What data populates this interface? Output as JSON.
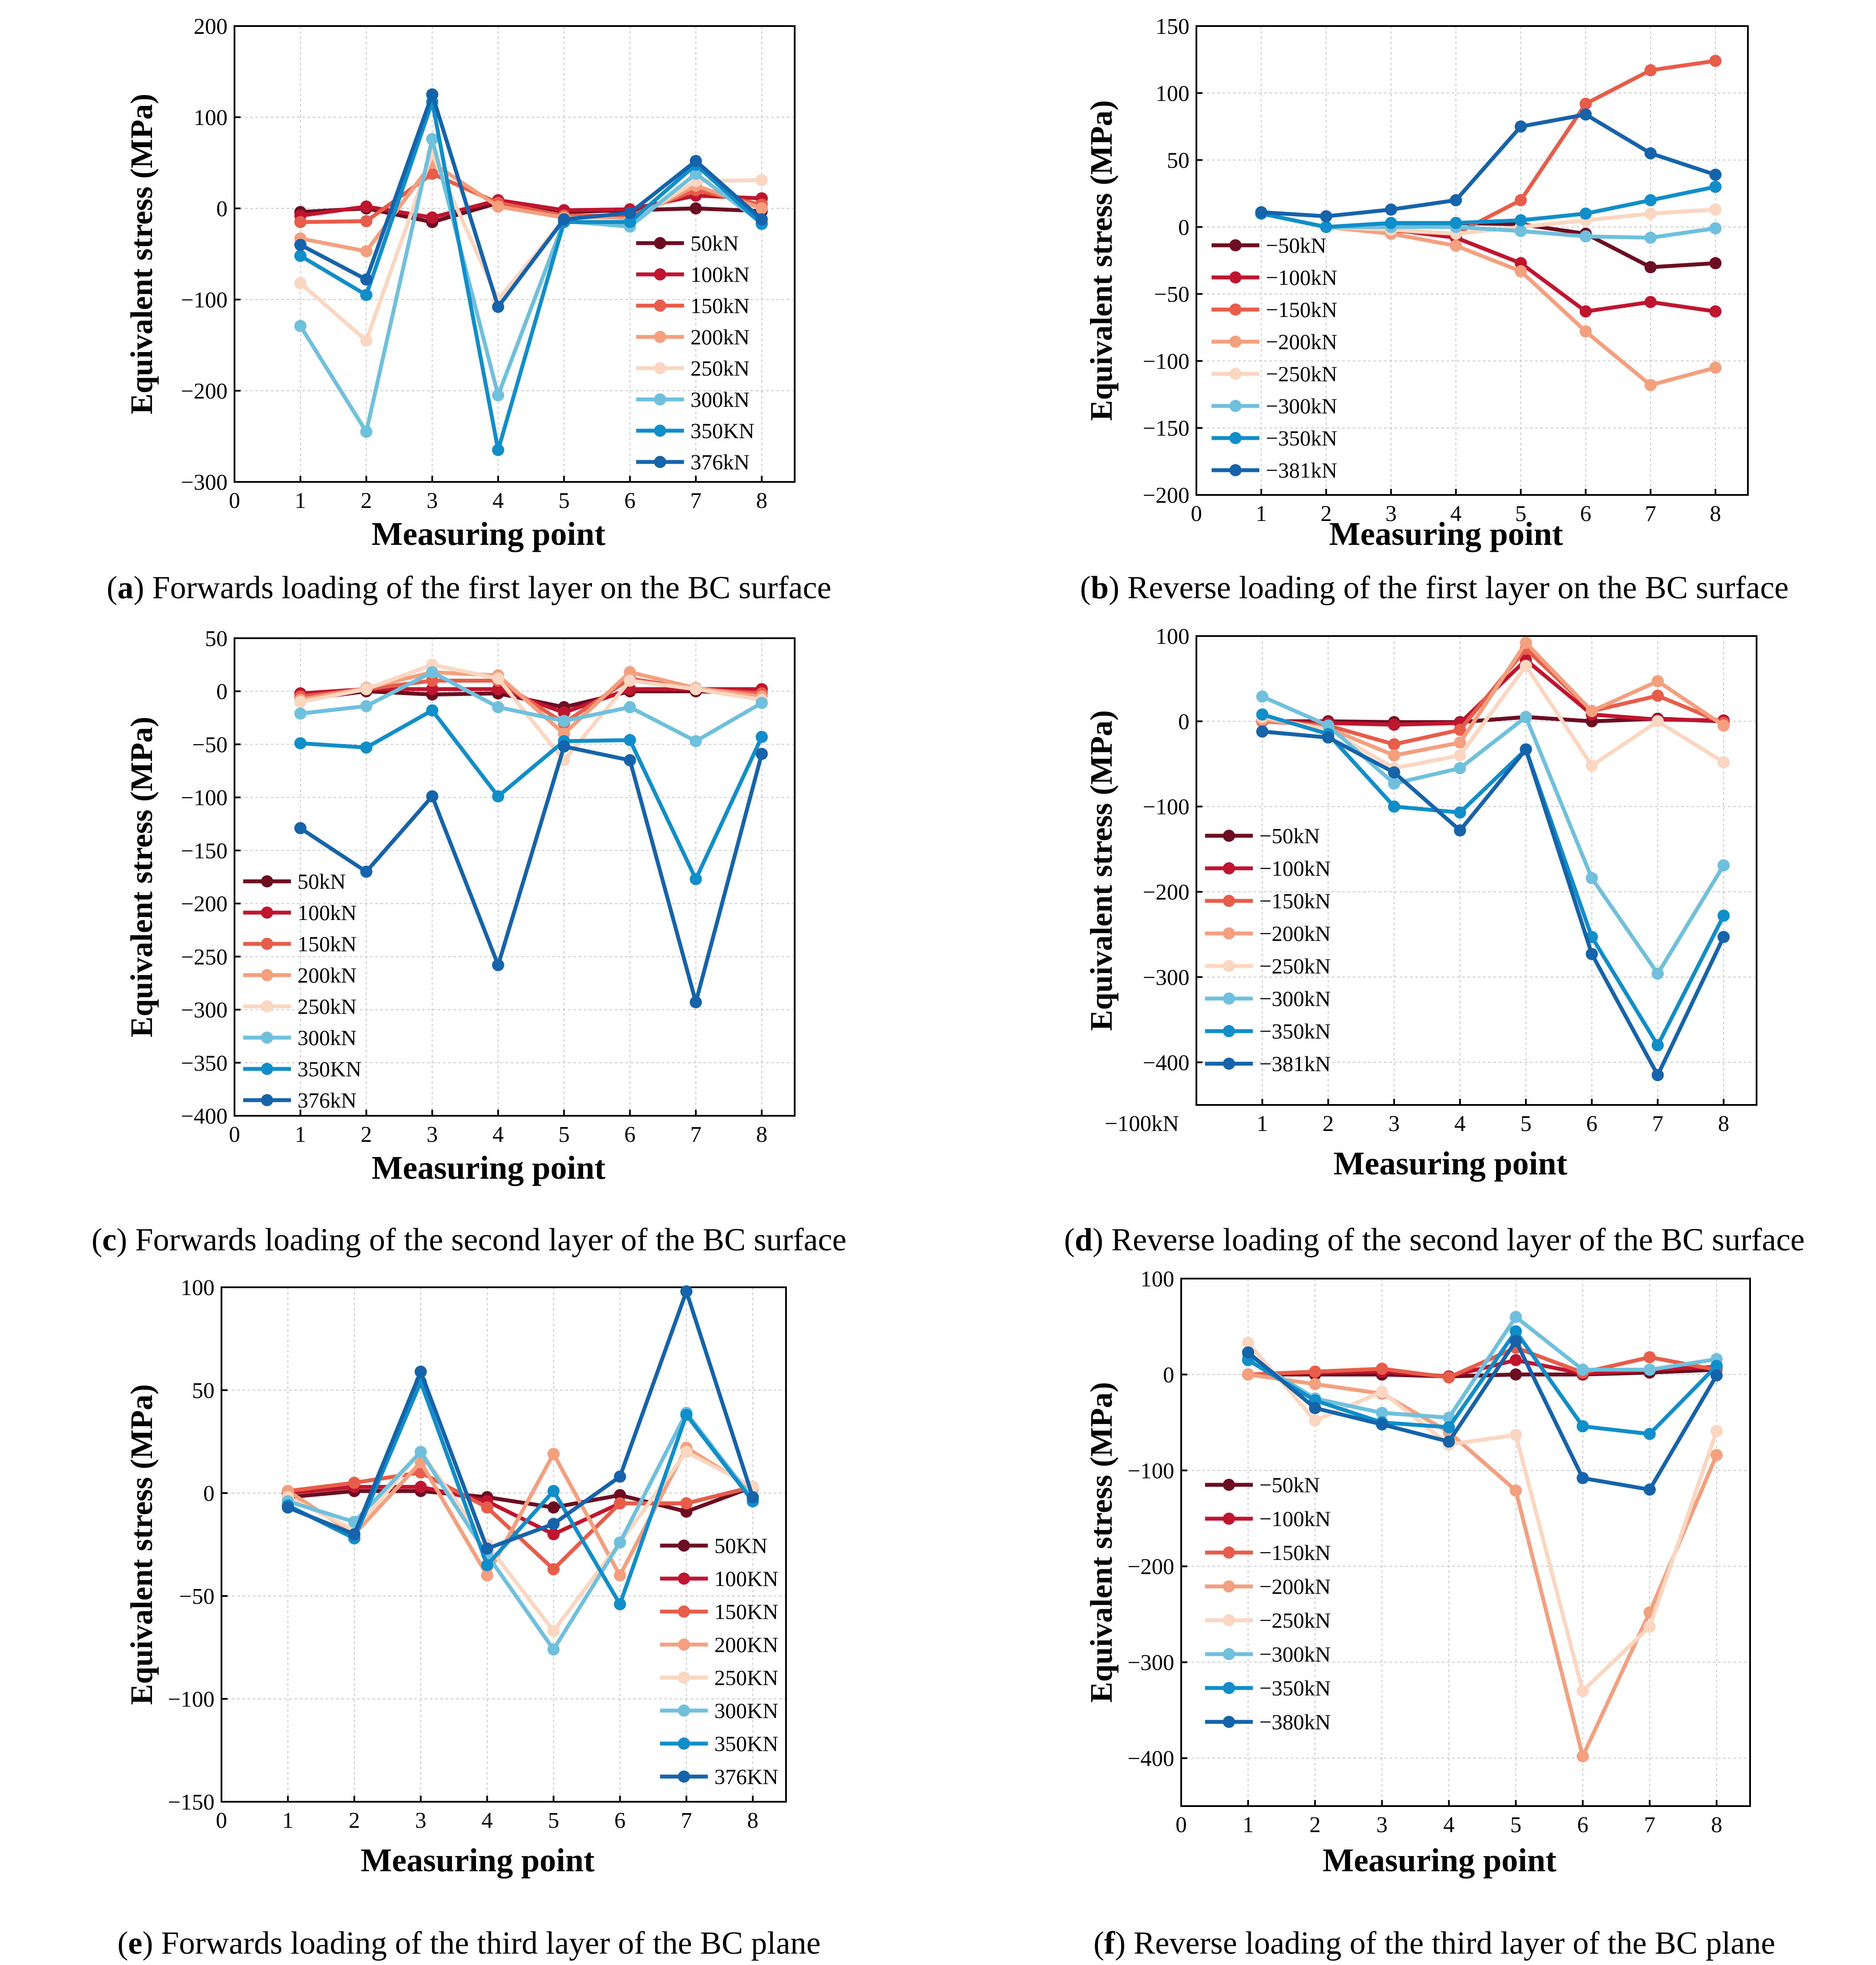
{
  "chart_data": [
    {
      "panel_letter": "a",
      "caption": "Forwards loading of the first layer on the BC surface",
      "type": "line",
      "xlabel": "Measuring point",
      "ylabel": "Equivalent stress (MPa)",
      "xlim": [
        0,
        8.5
      ],
      "ylim": [
        -300,
        200
      ],
      "x_ticks": [
        "0",
        "1",
        "2",
        "3",
        "4",
        "5",
        "6",
        "7",
        "8"
      ],
      "y_ticks": [
        "200",
        "100",
        "0",
        "−100",
        "−200",
        "−300"
      ],
      "y_tick_values": [
        200,
        100,
        0,
        -100,
        -200,
        -300
      ],
      "legend_position": "bottom-right",
      "x": [
        1,
        2,
        3,
        4,
        5,
        6,
        7,
        8
      ],
      "series": [
        {
          "name": "50kN",
          "color": "#6d0d22",
          "values": [
            -4,
            0,
            -15,
            6,
            -4,
            -2,
            0,
            -3
          ]
        },
        {
          "name": "100kN",
          "color": "#c0152e",
          "values": [
            -8,
            2,
            -10,
            9,
            -2,
            -1,
            14,
            11
          ]
        },
        {
          "name": "150kN",
          "color": "#e85c4a",
          "values": [
            -15,
            -14,
            38,
            6,
            -8,
            -8,
            20,
            4
          ]
        },
        {
          "name": "200kN",
          "color": "#f4a07e",
          "values": [
            -33,
            -47,
            50,
            2,
            -10,
            -12,
            25,
            0
          ]
        },
        {
          "name": "250kN",
          "color": "#fbd6c0",
          "values": [
            -82,
            -145,
            60,
            -100,
            -12,
            -15,
            30,
            31
          ]
        },
        {
          "name": "300kN",
          "color": "#6fc0dd",
          "values": [
            -129,
            -245,
            76,
            -205,
            -14,
            -20,
            38,
            -16
          ]
        },
        {
          "name": "350KN",
          "color": "#0f8ec9",
          "values": [
            -52,
            -95,
            117,
            -265,
            -15,
            -15,
            48,
            -17
          ]
        },
        {
          "name": "376kN",
          "color": "#1463ab",
          "values": [
            -40,
            -78,
            125,
            -108,
            -12,
            -5,
            52,
            -12
          ]
        }
      ]
    },
    {
      "panel_letter": "b",
      "caption": "Reverse loading of the first layer on the BC surface",
      "type": "line",
      "xlabel": "Measuring point",
      "ylabel": "Equivalent stress (MPa)",
      "xlim": [
        0,
        8.5
      ],
      "ylim": [
        -200,
        150
      ],
      "x_ticks": [
        "0",
        "1",
        "2",
        "3",
        "4",
        "5",
        "6",
        "7",
        "8"
      ],
      "y_ticks": [
        "150",
        "100",
        "50",
        "0",
        "−50",
        "−100",
        "−150",
        "−200"
      ],
      "y_tick_values": [
        150,
        100,
        50,
        0,
        -50,
        -100,
        -150,
        -200
      ],
      "legend_position": "bottom-left",
      "x": [
        1,
        2,
        3,
        4,
        5,
        6,
        7,
        8
      ],
      "series": [
        {
          "name": "−50kN",
          "color": "#6d0d22",
          "values": [
            10,
            0,
            2,
            3,
            2,
            -5,
            -30,
            -27
          ]
        },
        {
          "name": "−100kN",
          "color": "#c0152e",
          "values": [
            10,
            0,
            -2,
            -8,
            -27,
            -63,
            -56,
            -63
          ]
        },
        {
          "name": "−150kN",
          "color": "#e85c4a",
          "values": [
            10,
            0,
            -3,
            -5,
            20,
            92,
            117,
            124
          ]
        },
        {
          "name": "−200kN",
          "color": "#f4a07e",
          "values": [
            10,
            0,
            -5,
            -14,
            -33,
            -78,
            -118,
            -105
          ]
        },
        {
          "name": "−250kN",
          "color": "#fbd6c0",
          "values": [
            10,
            0,
            -2,
            -5,
            0,
            5,
            10,
            13
          ]
        },
        {
          "name": "−300kN",
          "color": "#6fc0dd",
          "values": [
            10,
            0,
            0,
            0,
            -3,
            -7,
            -8,
            -1
          ]
        },
        {
          "name": "−350kN",
          "color": "#0f8ec9",
          "values": [
            10,
            0,
            3,
            3,
            5,
            10,
            20,
            30
          ]
        },
        {
          "name": "−381kN",
          "color": "#1463ab",
          "values": [
            11,
            8,
            13,
            20,
            75,
            84,
            55,
            39
          ]
        }
      ]
    },
    {
      "panel_letter": "c",
      "caption": "Forwards loading of the second layer of the BC surface",
      "type": "line",
      "xlabel": "Measuring point",
      "ylabel": "Equivalent stress (MPa)",
      "xlim": [
        0,
        8.5
      ],
      "ylim": [
        -400,
        50
      ],
      "x_ticks": [
        "0",
        "1",
        "2",
        "3",
        "4",
        "5",
        "6",
        "7",
        "8"
      ],
      "y_ticks": [
        "50",
        "0",
        "−50",
        "−100",
        "−150",
        "−200",
        "−250",
        "−300",
        "−350",
        "−400"
      ],
      "y_tick_values": [
        50,
        0,
        -50,
        -100,
        -150,
        -200,
        -250,
        -300,
        -350,
        -400
      ],
      "legend_position": "bottom-left",
      "x": [
        1,
        2,
        3,
        4,
        5,
        6,
        7,
        8
      ],
      "series": [
        {
          "name": "50kN",
          "color": "#6d0d22",
          "values": [
            -8,
            0,
            -3,
            -2,
            -15,
            0,
            0,
            -2
          ]
        },
        {
          "name": "100kN",
          "color": "#c0152e",
          "values": [
            -2,
            2,
            2,
            2,
            -20,
            2,
            2,
            2
          ]
        },
        {
          "name": "150kN",
          "color": "#e85c4a",
          "values": [
            -5,
            2,
            10,
            10,
            -30,
            12,
            2,
            -2
          ]
        },
        {
          "name": "200kN",
          "color": "#f4a07e",
          "values": [
            -8,
            3,
            18,
            15,
            -40,
            18,
            3,
            -5
          ]
        },
        {
          "name": "250kN",
          "color": "#fbd6c0",
          "values": [
            -10,
            2,
            25,
            12,
            -65,
            10,
            2,
            -8
          ]
        },
        {
          "name": "300kN",
          "color": "#6fc0dd",
          "values": [
            -21,
            -14,
            18,
            -15,
            -28,
            -15,
            -47,
            -11
          ]
        },
        {
          "name": "350KN",
          "color": "#0f8ec9",
          "values": [
            -49,
            -53,
            -18,
            -99,
            -47,
            -46,
            -177,
            -43
          ]
        },
        {
          "name": "376kN",
          "color": "#1463ab",
          "values": [
            -129,
            -170,
            -99,
            -258,
            -52,
            -65,
            -293,
            -59
          ]
        }
      ]
    },
    {
      "panel_letter": "d",
      "caption": "Reverse loading of the second layer of the BC surface",
      "type": "line",
      "xlabel": "Measuring point",
      "ylabel": "Equivalent stress (MPa)",
      "xlim": [
        0,
        8.5
      ],
      "ylim": [
        -450,
        100
      ],
      "x_ticks": [
        "−100kN",
        "1",
        "2",
        "3",
        "4",
        "5",
        "6",
        "7",
        "8"
      ],
      "y_ticks": [
        "100",
        "0",
        "−100",
        "−200",
        "−300",
        "−400"
      ],
      "y_tick_values": [
        100,
        0,
        -100,
        -200,
        -300,
        -400
      ],
      "legend_position": "bottom-left",
      "x": [
        1,
        2,
        3,
        4,
        5,
        6,
        7,
        8
      ],
      "series": [
        {
          "name": "−50kN",
          "color": "#6d0d22",
          "values": [
            0,
            0,
            -1,
            -1,
            5,
            0,
            3,
            0
          ]
        },
        {
          "name": "−100kN",
          "color": "#c0152e",
          "values": [
            0,
            -2,
            -4,
            -2,
            72,
            8,
            2,
            1
          ]
        },
        {
          "name": "−150kN",
          "color": "#e85c4a",
          "values": [
            0,
            -5,
            -27,
            -10,
            85,
            12,
            30,
            -2
          ]
        },
        {
          "name": "−200kN",
          "color": "#f4a07e",
          "values": [
            2,
            -8,
            -40,
            -25,
            92,
            12,
            47,
            -5
          ]
        },
        {
          "name": "−250kN",
          "color": "#fbd6c0",
          "values": [
            5,
            -10,
            -55,
            -40,
            65,
            -52,
            0,
            -48
          ]
        },
        {
          "name": "−300kN",
          "color": "#6fc0dd",
          "values": [
            29,
            -5,
            -73,
            -55,
            5,
            -184,
            -296,
            -169
          ]
        },
        {
          "name": "−350kN",
          "color": "#0f8ec9",
          "values": [
            8,
            -15,
            -100,
            -107,
            -33,
            -253,
            -380,
            -228
          ]
        },
        {
          "name": "−381kN",
          "color": "#1463ab",
          "values": [
            -12,
            -19,
            -60,
            -128,
            -33,
            -273,
            -415,
            -253
          ]
        }
      ]
    },
    {
      "panel_letter": "e",
      "caption": "Forwards loading of the third layer of the BC plane",
      "type": "line",
      "xlabel": "Measuring point",
      "ylabel": "Equivalent stress (MPa)",
      "xlim": [
        0,
        8.5
      ],
      "ylim": [
        -150,
        100
      ],
      "x_ticks": [
        "0",
        "1",
        "2",
        "3",
        "4",
        "5",
        "6",
        "7",
        "8"
      ],
      "y_ticks": [
        "100",
        "50",
        "0",
        "−50",
        "−100",
        "−150"
      ],
      "y_tick_values": [
        100,
        50,
        0,
        -50,
        -100,
        -150
      ],
      "legend_position": "bottom-right",
      "x": [
        1,
        2,
        3,
        4,
        5,
        6,
        7,
        8
      ],
      "series": [
        {
          "name": "50KN",
          "color": "#6d0d22",
          "values": [
            -2,
            1,
            1,
            -2,
            -7,
            -1,
            -9,
            3
          ]
        },
        {
          "name": "100KN",
          "color": "#c0152e",
          "values": [
            0,
            3,
            3,
            -4,
            -20,
            -5,
            -5,
            3
          ]
        },
        {
          "name": "150KN",
          "color": "#e85c4a",
          "values": [
            1,
            5,
            10,
            -7,
            -37,
            -5,
            -5,
            3
          ]
        },
        {
          "name": "200KN",
          "color": "#f4a07e",
          "values": [
            1,
            -20,
            15,
            -40,
            19,
            -40,
            22,
            2
          ]
        },
        {
          "name": "250KN",
          "color": "#fbd6c0",
          "values": [
            -2,
            -18,
            20,
            -25,
            -67,
            -24,
            20,
            3
          ]
        },
        {
          "name": "300KN",
          "color": "#6fc0dd",
          "values": [
            -4,
            -14,
            20,
            -30,
            -76,
            -24,
            39,
            -3
          ]
        },
        {
          "name": "350KN",
          "color": "#0f8ec9",
          "values": [
            -6,
            -22,
            54,
            -35,
            1,
            -54,
            38,
            -4
          ]
        },
        {
          "name": "376KN",
          "color": "#1463ab",
          "values": [
            -7,
            -20,
            59,
            -27,
            -15,
            8,
            98,
            -2
          ]
        }
      ]
    },
    {
      "panel_letter": "f",
      "caption": "Reverse loading of the third layer of the BC plane",
      "type": "line",
      "xlabel": "Measuring point",
      "ylabel": "Equivalent stress (MPa)",
      "xlim": [
        0,
        8.5
      ],
      "ylim": [
        -450,
        100
      ],
      "x_ticks": [
        "0",
        "1",
        "2",
        "3",
        "4",
        "5",
        "6",
        "7",
        "8"
      ],
      "y_ticks": [
        "100",
        "0",
        "−100",
        "−200",
        "−300",
        "−400"
      ],
      "y_tick_values": [
        100,
        0,
        -100,
        -200,
        -300,
        -400
      ],
      "legend_position": "bottom-left",
      "x": [
        1,
        2,
        3,
        4,
        5,
        6,
        7,
        8
      ],
      "series": [
        {
          "name": "−50kN",
          "color": "#6d0d22",
          "values": [
            0,
            0,
            0,
            -2,
            0,
            0,
            2,
            5
          ]
        },
        {
          "name": "−100kN",
          "color": "#c0152e",
          "values": [
            0,
            2,
            3,
            -2,
            15,
            1,
            5,
            8
          ]
        },
        {
          "name": "−150kN",
          "color": "#e85c4a",
          "values": [
            0,
            3,
            6,
            -3,
            28,
            2,
            18,
            5
          ]
        },
        {
          "name": "−200kN",
          "color": "#f4a07e",
          "values": [
            0,
            -10,
            -20,
            -60,
            -121,
            -398,
            -248,
            -84
          ]
        },
        {
          "name": "−250kN",
          "color": "#fbd6c0",
          "values": [
            33,
            -48,
            -18,
            -73,
            -63,
            -330,
            -263,
            -59
          ]
        },
        {
          "name": "−300kN",
          "color": "#6fc0dd",
          "values": [
            18,
            -25,
            -40,
            -45,
            60,
            5,
            5,
            16
          ]
        },
        {
          "name": "−350kN",
          "color": "#0f8ec9",
          "values": [
            15,
            -27,
            -50,
            -55,
            45,
            -54,
            -62,
            9
          ]
        },
        {
          "name": "−380kN",
          "color": "#1463ab",
          "values": [
            23,
            -35,
            -52,
            -70,
            35,
            -108,
            -120,
            -1
          ]
        }
      ]
    }
  ]
}
